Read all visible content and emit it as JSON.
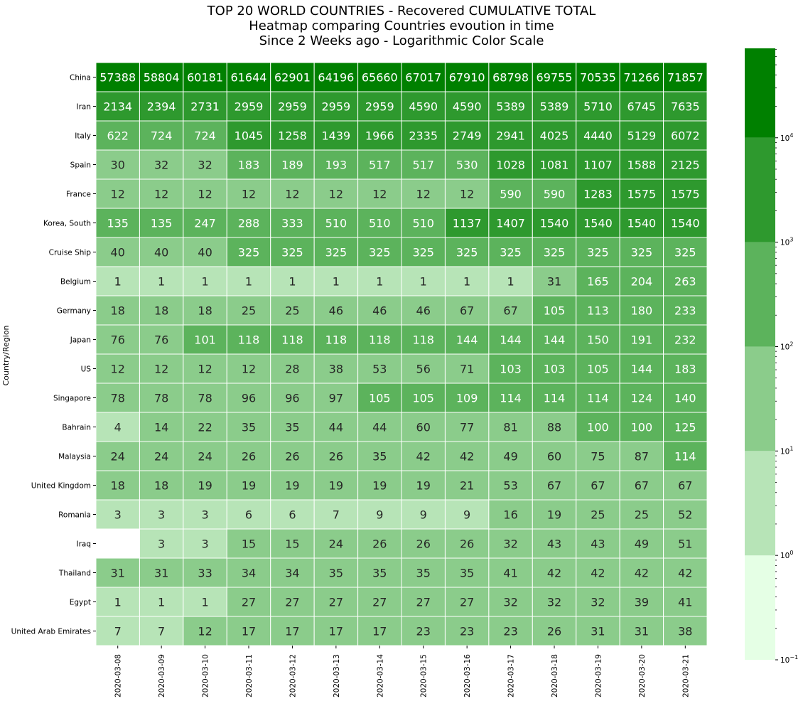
{
  "chart_data": {
    "type": "heatmap",
    "title": [
      "TOP 20 WORLD COUNTRIES - Recovered CUMULATIVE TOTAL",
      "Heatmap comparing Countries evoution in time",
      "Since 2 Weeks ago - Logarithmic Color Scale"
    ],
    "ylabel": "Country/Region",
    "xlabel": "",
    "x": [
      "2020-03-08",
      "2020-03-09",
      "2020-03-10",
      "2020-03-11",
      "2020-03-12",
      "2020-03-13",
      "2020-03-14",
      "2020-03-15",
      "2020-03-16",
      "2020-03-17",
      "2020-03-18",
      "2020-03-19",
      "2020-03-20",
      "2020-03-21"
    ],
    "y": [
      "China",
      "Iran",
      "Italy",
      "Spain",
      "France",
      "Korea, South",
      "Cruise Ship",
      "Belgium",
      "Germany",
      "Japan",
      "US",
      "Singapore",
      "Bahrain",
      "Malaysia",
      "United Kingdom",
      "Romania",
      "Iraq",
      "Thailand",
      "Egypt",
      "United Arab Emirates"
    ],
    "values": [
      [
        57388,
        58804,
        60181,
        61644,
        62901,
        64196,
        65660,
        67017,
        67910,
        68798,
        69755,
        70535,
        71266,
        71857
      ],
      [
        2134,
        2394,
        2731,
        2959,
        2959,
        2959,
        2959,
        4590,
        4590,
        5389,
        5389,
        5710,
        6745,
        7635
      ],
      [
        622,
        724,
        724,
        1045,
        1258,
        1439,
        1966,
        2335,
        2749,
        2941,
        4025,
        4440,
        5129,
        6072
      ],
      [
        30,
        32,
        32,
        183,
        189,
        193,
        517,
        517,
        530,
        1028,
        1081,
        1107,
        1588,
        2125
      ],
      [
        12,
        12,
        12,
        12,
        12,
        12,
        12,
        12,
        12,
        590,
        590,
        1283,
        1575,
        1575
      ],
      [
        135,
        135,
        247,
        288,
        333,
        510,
        510,
        510,
        1137,
        1407,
        1540,
        1540,
        1540,
        1540
      ],
      [
        40,
        40,
        40,
        325,
        325,
        325,
        325,
        325,
        325,
        325,
        325,
        325,
        325,
        325
      ],
      [
        1,
        1,
        1,
        1,
        1,
        1,
        1,
        1,
        1,
        1,
        31,
        165,
        204,
        263
      ],
      [
        18,
        18,
        18,
        25,
        25,
        46,
        46,
        46,
        67,
        67,
        105,
        113,
        180,
        233
      ],
      [
        76,
        76,
        101,
        118,
        118,
        118,
        118,
        118,
        144,
        144,
        144,
        150,
        191,
        232
      ],
      [
        12,
        12,
        12,
        12,
        28,
        38,
        53,
        56,
        71,
        103,
        103,
        105,
        144,
        183
      ],
      [
        78,
        78,
        78,
        96,
        96,
        97,
        105,
        105,
        109,
        114,
        114,
        114,
        124,
        140
      ],
      [
        4,
        14,
        22,
        35,
        35,
        44,
        44,
        60,
        77,
        81,
        88,
        100,
        100,
        125
      ],
      [
        24,
        24,
        24,
        26,
        26,
        26,
        35,
        42,
        42,
        49,
        60,
        75,
        87,
        114
      ],
      [
        18,
        18,
        19,
        19,
        19,
        19,
        19,
        19,
        21,
        53,
        67,
        67,
        67,
        67
      ],
      [
        3,
        3,
        3,
        6,
        6,
        7,
        9,
        9,
        9,
        16,
        19,
        25,
        25,
        52
      ],
      [
        null,
        3,
        3,
        15,
        15,
        24,
        26,
        26,
        26,
        32,
        43,
        43,
        49,
        51
      ],
      [
        31,
        31,
        33,
        34,
        34,
        35,
        35,
        35,
        35,
        41,
        42,
        42,
        42,
        42
      ],
      [
        1,
        1,
        1,
        27,
        27,
        27,
        27,
        27,
        27,
        32,
        32,
        32,
        39,
        41
      ],
      [
        7,
        7,
        12,
        17,
        17,
        17,
        17,
        23,
        23,
        23,
        26,
        31,
        31,
        38
      ]
    ],
    "color_scale": "log",
    "colorbar": {
      "min": 0.1,
      "max": 71857,
      "boundaries": [
        0.1,
        1,
        10,
        100,
        1000,
        10000,
        71857
      ],
      "colors": [
        "#e5ffe5",
        "#b7e4b7",
        "#8bcc8b",
        "#5cb35c",
        "#2e992e",
        "#008000"
      ],
      "tick_values": [
        0.1,
        1,
        10,
        100,
        1000,
        10000
      ],
      "tick_bases": [
        "10",
        "10",
        "10",
        "10",
        "10",
        "10"
      ],
      "tick_exponents": [
        "−1",
        "0",
        "1",
        "2",
        "3",
        "4"
      ]
    },
    "grid": true,
    "annotation_color_dark_bg": "#ffffff",
    "annotation_color_light_bg": "#262626"
  }
}
